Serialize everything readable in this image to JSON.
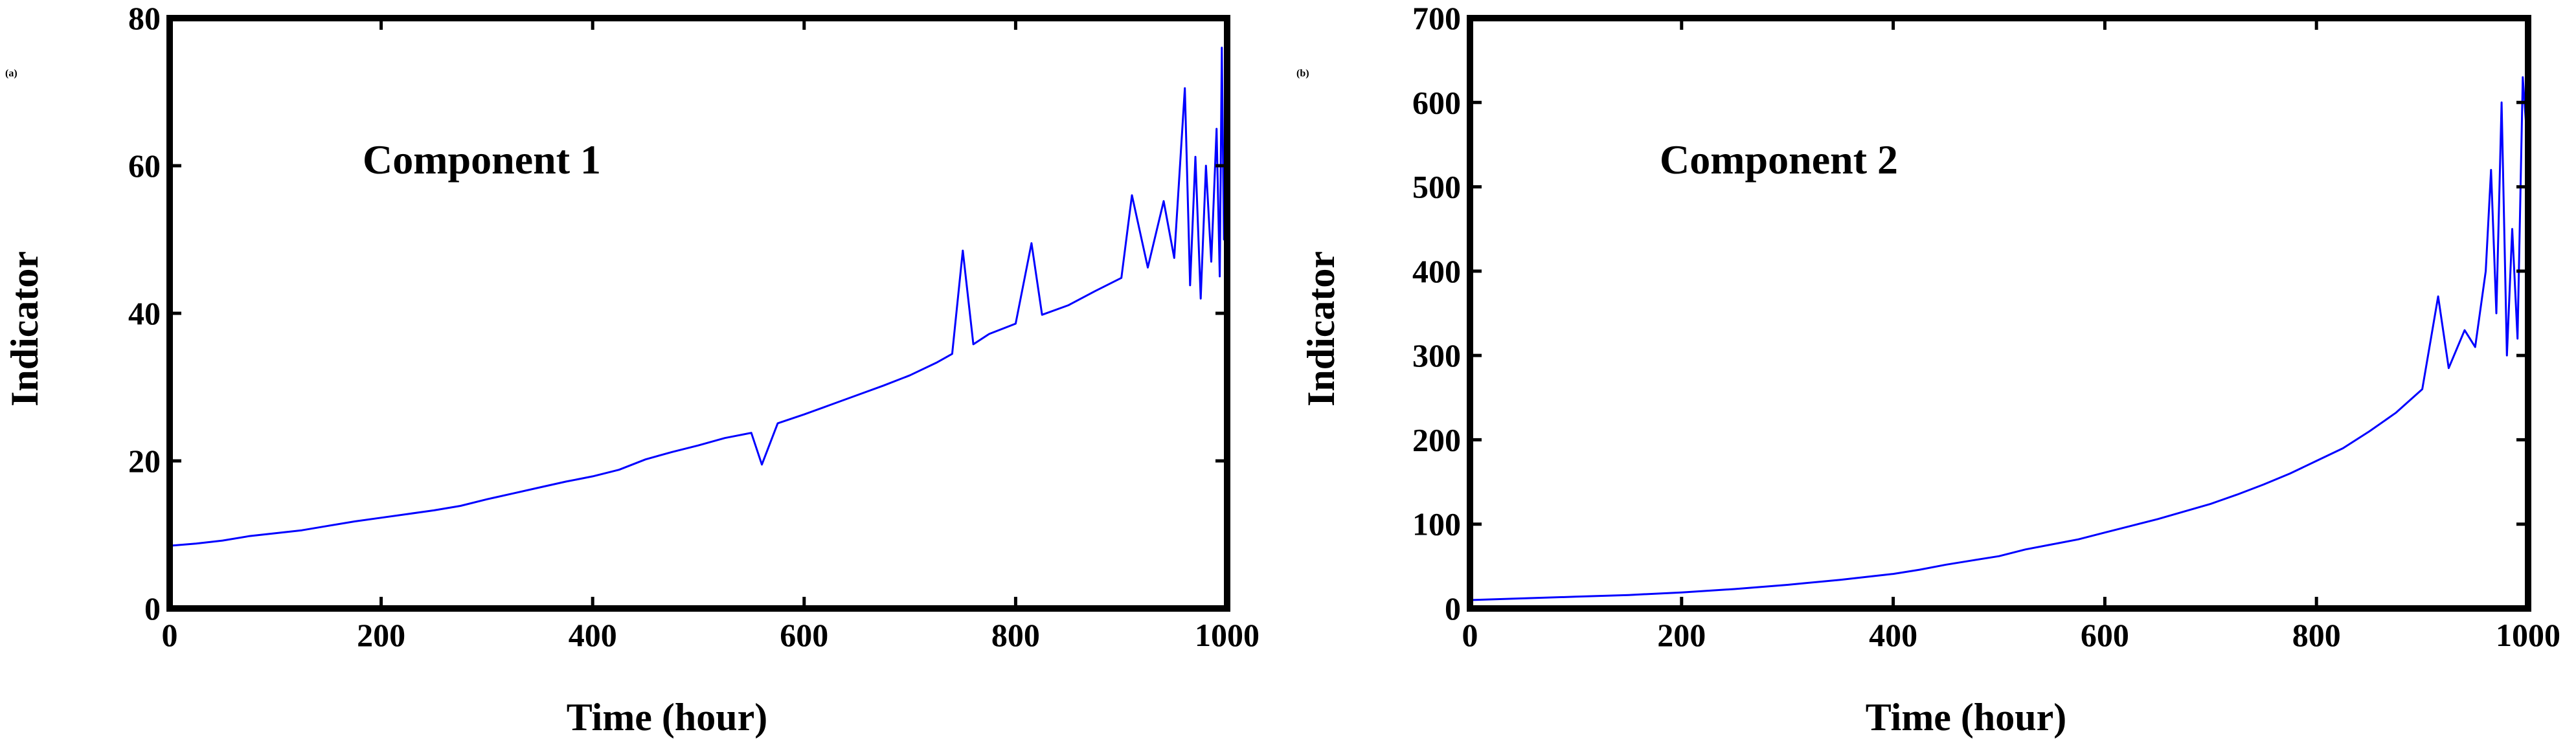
{
  "figure": {
    "panels": [
      {
        "panel_label": "(a)",
        "annotation": "Component 1",
        "xlabel": "Time (hour)",
        "ylabel": "Indicator",
        "line_color": "#0000FF",
        "xticks": [
          "0",
          "200",
          "400",
          "600",
          "800",
          "1000"
        ],
        "yticks": [
          "0",
          "20",
          "40",
          "60",
          "80"
        ]
      },
      {
        "panel_label": "(b)",
        "annotation": "Component 2",
        "xlabel": "Time (hour)",
        "ylabel": "Indicator",
        "line_color": "#0000FF",
        "xticks": [
          "0",
          "200",
          "400",
          "600",
          "800",
          "1000"
        ],
        "yticks": [
          "0",
          "100",
          "200",
          "300",
          "400",
          "500",
          "600",
          "700"
        ]
      }
    ]
  },
  "chart_data": [
    {
      "type": "line",
      "title": "",
      "xlabel": "Time (hour)",
      "ylabel": "Indicator",
      "annotation": "Component 1",
      "xlim": [
        0,
        1000
      ],
      "ylim": [
        0,
        80
      ],
      "grid": false,
      "series": [
        {
          "color": "#0000FF",
          "x": [
            0,
            25,
            50,
            75,
            100,
            125,
            150,
            175,
            200,
            225,
            250,
            275,
            300,
            325,
            350,
            375,
            400,
            425,
            450,
            475,
            500,
            525,
            550,
            560,
            575,
            600,
            625,
            650,
            675,
            700,
            725,
            740,
            750,
            760,
            775,
            800,
            815,
            825,
            850,
            875,
            900,
            910,
            925,
            940,
            950,
            960,
            965,
            970,
            975,
            980,
            985,
            990,
            993,
            995,
            997,
            1000
          ],
          "y": [
            8.5,
            8.8,
            9.2,
            9.8,
            10.2,
            10.6,
            11.2,
            11.8,
            12.3,
            12.8,
            13.3,
            13.9,
            14.8,
            15.6,
            16.4,
            17.2,
            17.9,
            18.8,
            20.2,
            21.2,
            22.1,
            23.1,
            23.8,
            19.5,
            25.1,
            26.3,
            27.6,
            28.9,
            30.2,
            31.6,
            33.3,
            34.5,
            48.5,
            35.8,
            37.2,
            38.6,
            49.5,
            39.8,
            41.1,
            43.0,
            44.8,
            56.0,
            46.2,
            55.2,
            47.5,
            70.5,
            43.8,
            61.2,
            42.0,
            60.0,
            47.0,
            65.0,
            45.0,
            76.0,
            50.0,
            75.0
          ]
        }
      ]
    },
    {
      "type": "line",
      "title": "",
      "xlabel": "Time (hour)",
      "ylabel": "Indicator",
      "annotation": "Component 2",
      "xlim": [
        0,
        1000
      ],
      "ylim": [
        0,
        700
      ],
      "grid": false,
      "series": [
        {
          "color": "#0000FF",
          "x": [
            0,
            50,
            100,
            150,
            200,
            250,
            300,
            350,
            400,
            425,
            450,
            475,
            500,
            525,
            550,
            575,
            600,
            625,
            650,
            675,
            700,
            725,
            750,
            775,
            800,
            825,
            850,
            875,
            900,
            915,
            925,
            940,
            950,
            960,
            965,
            970,
            975,
            980,
            985,
            990,
            995,
            1000
          ],
          "y": [
            10,
            12,
            14,
            16,
            19,
            23,
            28,
            34,
            41,
            46,
            52,
            57,
            62,
            70,
            76,
            82,
            90,
            98,
            106,
            115,
            124,
            135,
            147,
            160,
            175,
            190,
            210,
            232,
            260,
            370,
            285,
            330,
            310,
            400,
            520,
            350,
            600,
            300,
            450,
            320,
            630,
            540
          ]
        }
      ]
    }
  ]
}
